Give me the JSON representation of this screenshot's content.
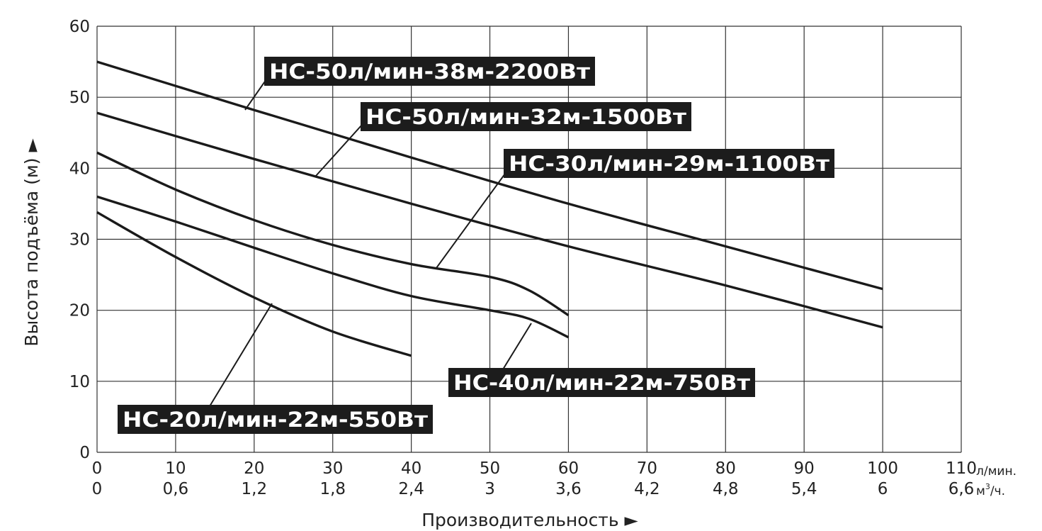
{
  "chart_data": {
    "type": "line",
    "xlabel": "Производительность ►",
    "ylabel": "Высота подъёма (м) ►",
    "x_unit": "л/мин.",
    "x2_unit_base": "м",
    "x2_unit_sup": "3",
    "x2_unit_tail": "/ч.",
    "xlim": [
      0,
      110
    ],
    "ylim": [
      0,
      60
    ],
    "x_ticks": [
      "0",
      "10",
      "20",
      "30",
      "40",
      "50",
      "60",
      "70",
      "80",
      "90",
      "100",
      "110"
    ],
    "x2_ticks": [
      "0",
      "0,6",
      "1,2",
      "1,8",
      "2,4",
      "3",
      "3,6",
      "4,2",
      "4,8",
      "5,4",
      "6",
      "6,6"
    ],
    "y_ticks": [
      "0",
      "10",
      "20",
      "30",
      "40",
      "50",
      "60"
    ],
    "grid": true,
    "series": [
      {
        "name": "НС-50л/мин-38м-2200Вт",
        "x": [
          0,
          20,
          40,
          60,
          80,
          100
        ],
        "y": [
          55,
          48.2,
          41.5,
          35,
          29,
          23
        ]
      },
      {
        "name": "НС-50л/мин-32м-1500Вт",
        "x": [
          0,
          20,
          40,
          60,
          80,
          100
        ],
        "y": [
          47.8,
          41.3,
          35,
          29,
          23.5,
          17.6
        ]
      },
      {
        "name": "НС-30л/мин-29м-1100Вт",
        "x": [
          0,
          10,
          20,
          30,
          40,
          50,
          55,
          60
        ],
        "y": [
          42.2,
          37,
          32.7,
          29.2,
          26.5,
          24.7,
          22.8,
          19.3
        ]
      },
      {
        "name": "НС-40л/мин-22м-750Вт",
        "x": [
          0,
          10,
          20,
          30,
          40,
          50,
          55,
          60
        ],
        "y": [
          36,
          32.5,
          28.8,
          25.2,
          22,
          20,
          18.8,
          16.2
        ]
      },
      {
        "name": "НС-20л/мин-22м-550Вт",
        "x": [
          0,
          10,
          20,
          30,
          40
        ],
        "y": [
          33.8,
          27.5,
          21.8,
          17,
          13.6
        ]
      }
    ]
  },
  "labels": [
    {
      "series": 0,
      "text": "НС-50л/мин-38м-2200Вт"
    },
    {
      "series": 1,
      "text": "НС-50л/мин-32м-1500Вт"
    },
    {
      "series": 2,
      "text": "НС-30л/мин-29м-1100Вт"
    },
    {
      "series": 3,
      "text": "НС-40л/мин-22м-750Вт"
    },
    {
      "series": 4,
      "text": "НС-20л/мин-22м-550Вт"
    }
  ]
}
